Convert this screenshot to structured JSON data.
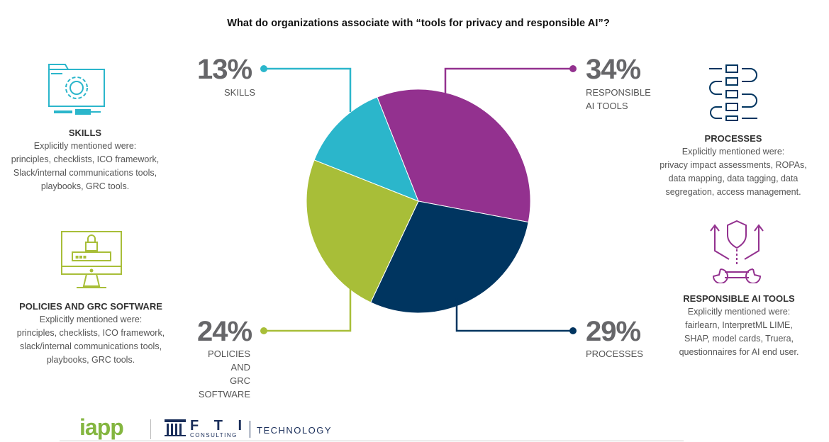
{
  "title": "What do organizations associate with “tools for privacy and responsible AI”?",
  "chart_data": {
    "type": "pie",
    "title": "What do organizations associate with “tools for privacy and responsible AI”?",
    "slices": [
      {
        "label": "RESPONSIBLE AI TOOLS",
        "value": 34,
        "display": "34%",
        "color": "#93318f"
      },
      {
        "label": "PROCESSES",
        "value": 29,
        "display": "29%",
        "color": "#003560"
      },
      {
        "label": "POLICIES AND GRC SOFTWARE",
        "value": 24,
        "display": "24%",
        "color": "#a8be38"
      },
      {
        "label": "SKILLS",
        "value": 13,
        "display": "13%",
        "color": "#2bb6cb"
      }
    ]
  },
  "slice_labels": {
    "skills": {
      "pct": "13%",
      "line1": "SKILLS",
      "line2": ""
    },
    "responsible": {
      "pct": "34%",
      "line1": "RESPONSIBLE",
      "line2": "AI TOOLS"
    },
    "processes": {
      "pct": "29%",
      "line1": "PROCESSES",
      "line2": ""
    },
    "policies": {
      "pct": "24%",
      "line1": "POLICIES AND",
      "line2": "GRC SOFTWARE"
    }
  },
  "categories": {
    "skills": {
      "title": "SKILLS",
      "description": "Explicitly mentioned were:\nprinciples, checklists, ICO framework,\nSlack/internal communications tools,\nplaybooks, GRC tools."
    },
    "policies": {
      "title": "POLICIES AND GRC SOFTWARE",
      "description": "Explicitly mentioned were:\nprinciples, checklists, ICO framework,\nslack/internal communications tools,\nplaybooks, GRC tools."
    },
    "processes": {
      "title": "PROCESSES",
      "description": "Explicitly mentioned were:\nprivacy impact assessments, ROPAs,\ndata mapping, data tagging, data\nsegregation, access management."
    },
    "responsible": {
      "title": "RESPONSIBLE AI TOOLS",
      "description": "Explicitly mentioned were:\nfairlearn, InterpretML LIME,\nSHAP, model cards, Truera,\nquestionnaires for AI end user."
    }
  },
  "footer": {
    "iapp": "iapp",
    "fti": "F T I",
    "fti_sub": "CONSULTING",
    "tech": "TECHNOLOGY"
  },
  "icons": {
    "skills": "folder-gear-screwdriver-icon",
    "policies": "monitor-lock-icon",
    "processes": "process-flow-icon",
    "responsible": "shield-wrench-icon"
  }
}
